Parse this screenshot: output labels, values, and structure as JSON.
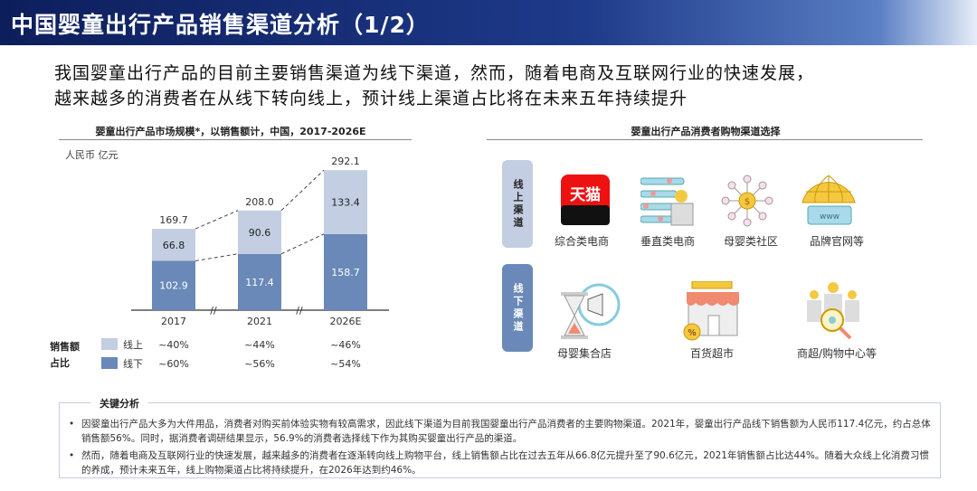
{
  "title": "中国婴童出行产品销售渠道分析（1/2）",
  "subtitle": [
    "我国婴童出行产品的目前主要销售渠道为线下渠道，然而，随着电商及互联网行业的快速发展，",
    "越来越多的消费者在从线下转向线上，预计线上渠道占比将在未来五年持续提升"
  ],
  "chart_data": {
    "type": "bar",
    "stacked": true,
    "title": "婴童出行产品市场规模*，以销售额计，中国，2017-2026E",
    "unit": "人民币 亿元",
    "categories": [
      "2017",
      "2021",
      "2026E"
    ],
    "series": [
      {
        "name": "线下",
        "values": [
          102.9,
          117.4,
          158.7
        ],
        "color": "#6a89b8"
      },
      {
        "name": "线上",
        "values": [
          66.8,
          90.6,
          133.4
        ],
        "color": "#c3cee2"
      }
    ],
    "totals": [
      "169.7",
      "208.0",
      "292.1"
    ],
    "share_label": "销售额占比",
    "share": {
      "线上": [
        "~40%",
        "~44%",
        "~46%"
      ],
      "线下": [
        "~60%",
        "~56%",
        "~54%"
      ]
    },
    "axis_break": true
  },
  "channels": {
    "title": "婴童出行产品消费者购物渠道选择",
    "online": {
      "label": "线上渠道",
      "items": [
        {
          "label": "综合类电商",
          "icon": "tmall-icon",
          "logo_text": "天猫"
        },
        {
          "label": "垂直类电商",
          "icon": "vertical-ecommerce-icon"
        },
        {
          "label": "母婴类社区",
          "icon": "community-network-icon"
        },
        {
          "label": "品牌官网等",
          "icon": "globe-www-icon",
          "logo_text": "www"
        }
      ]
    },
    "offline": {
      "label": "线下渠道",
      "items": [
        {
          "label": "母婴集合店",
          "icon": "hourglass-megaphone-icon"
        },
        {
          "label": "百货超市",
          "icon": "store-icon"
        },
        {
          "label": "商超/购物中心等",
          "icon": "people-search-icon"
        }
      ]
    }
  },
  "analysis": {
    "title": "关键分析",
    "bullets": [
      "因婴童出行产品大多为大件用品，消费者对购买前体验实物有较高需求，因此线下渠道为目前我国婴童出行产品消费者的主要购物渠道。2021年，婴童出行产品线下销售额为人民币117.4亿元，约占总体销售额56%。同时，据消费者调研结果显示，56.9%的消费者选择线下作为其购买婴童出行产品的渠道。",
      "然而，随着电商及互联网行业的快速发展，越来越多的消费者在逐渐转向线上购物平台，线上销售额占比在过去五年从66.8亿元提升至了90.6亿元，2021年销售额占比达44%。随着大众线上化消费习惯的养成，预计未来五年，线上购物渠道占比将持续提升，在2026年达到约46%。"
    ]
  }
}
